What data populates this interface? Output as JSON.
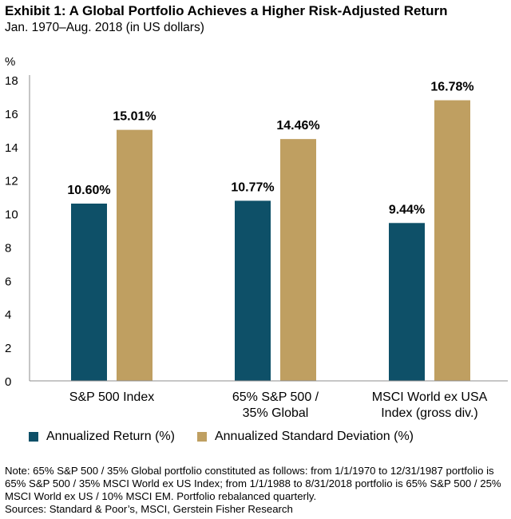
{
  "title": "Exhibit 1: A Global Portfolio Achieves a Higher Risk-Adjusted Return",
  "subtitle": "Jan. 1970–Aug. 2018 (in US dollars)",
  "y_unit": "%",
  "note": "Note: 65% S&P 500 / 35% Global portfolio constituted as follows: from 1/1/1970 to 12/31/1987 portfolio is 65% S&P 500 / 35% MSCI World ex US Index; from 1/1/1988 to 8/31/2018 portfolio is 65% S&P 500 / 25% MSCI World ex US / 10% MSCI EM. Portfolio rebalanced quarterly.",
  "sources": "Sources: Standard & Poor’s, MSCI, Gerstein Fisher Research",
  "colors": {
    "return": "#0e5068",
    "stdev": "#bf9f61",
    "axis": "#8c8c8c"
  },
  "chart_data": {
    "type": "bar",
    "categories": [
      [
        "S&P 500 Index"
      ],
      [
        "65% S&P 500 /",
        "35% Global"
      ],
      [
        "MSCI World ex USA",
        "Index (gross div.)"
      ]
    ],
    "series": [
      {
        "name": "Annualized Return (%)",
        "values": [
          10.6,
          10.77,
          9.44
        ],
        "labels": [
          "10.60%",
          "10.77%",
          "9.44%"
        ]
      },
      {
        "name": "Annualized Standard Deviation (%)",
        "values": [
          15.01,
          14.46,
          16.78
        ],
        "labels": [
          "15.01%",
          "14.46%",
          "16.78%"
        ]
      }
    ],
    "ylim": [
      0,
      18
    ],
    "yticks": [
      0,
      2,
      4,
      6,
      8,
      10,
      12,
      14,
      16,
      18
    ],
    "grid": false,
    "legend": "bottom"
  }
}
